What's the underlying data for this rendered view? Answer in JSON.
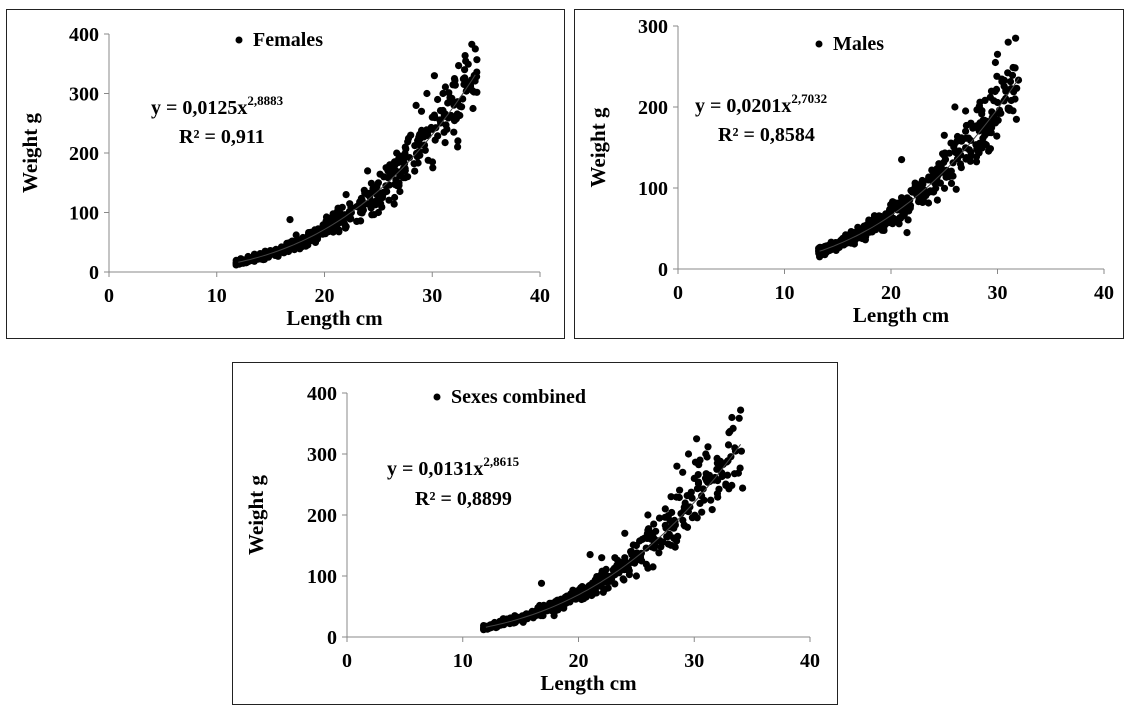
{
  "chart_data": [
    {
      "type": "scatter",
      "legend": "Females",
      "xlabel": "Length cm",
      "ylabel": "Weight g",
      "xlim": [
        0,
        40
      ],
      "ylim": [
        0,
        400
      ],
      "xticks": [
        "0",
        "10",
        "20",
        "30",
        "40"
      ],
      "yticks": [
        "0",
        "100",
        "200",
        "300",
        "400"
      ],
      "equation": {
        "base": "y = 0,0125x",
        "exponent": "2,8883"
      },
      "r2": "R² = 0,911",
      "fit": {
        "a": 0.0125,
        "b": 2.8883,
        "x_range": [
          12,
          34
        ]
      },
      "x_range": [
        11.8,
        34.2
      ],
      "points": [
        [
          11.8,
          12
        ],
        [
          12.5,
          18
        ],
        [
          13,
          22
        ],
        [
          13.5,
          30
        ],
        [
          14,
          26
        ],
        [
          14.5,
          35
        ],
        [
          15,
          30
        ],
        [
          15.5,
          38
        ],
        [
          16,
          42
        ],
        [
          16.5,
          48
        ],
        [
          17,
          52
        ],
        [
          16.8,
          88
        ],
        [
          17.5,
          55
        ],
        [
          18,
          58
        ],
        [
          18.5,
          62
        ],
        [
          19,
          67
        ],
        [
          19.5,
          72
        ],
        [
          20,
          75
        ],
        [
          20.5,
          80
        ],
        [
          21,
          85
        ],
        [
          21.5,
          90
        ],
        [
          22,
          95
        ],
        [
          22,
          130
        ],
        [
          22.5,
          100
        ],
        [
          23,
          110
        ],
        [
          23.5,
          120
        ],
        [
          24,
          130
        ],
        [
          24,
          170
        ],
        [
          24.5,
          140
        ],
        [
          25,
          150
        ],
        [
          25,
          100
        ],
        [
          25.5,
          160
        ],
        [
          26,
          175
        ],
        [
          26.5,
          185
        ],
        [
          27,
          195
        ],
        [
          27.5,
          210
        ],
        [
          28,
          230
        ],
        [
          28.5,
          280
        ],
        [
          29,
          270
        ],
        [
          29.5,
          300
        ],
        [
          30,
          260
        ],
        [
          30.2,
          330
        ],
        [
          30.5,
          290
        ],
        [
          31,
          300
        ],
        [
          32,
          235
        ],
        [
          32,
          285
        ],
        [
          33,
          340
        ],
        [
          33.5,
          310
        ],
        [
          34,
          375
        ]
      ]
    },
    {
      "type": "scatter",
      "legend": "Males",
      "xlabel": "Length cm",
      "ylabel": "Weight g",
      "xlim": [
        0,
        40
      ],
      "ylim": [
        0,
        300
      ],
      "xticks": [
        "0",
        "10",
        "20",
        "30",
        "40"
      ],
      "yticks": [
        "0",
        "100",
        "200",
        "300"
      ],
      "equation": {
        "base": "y = 0,0201x",
        "exponent": "2,7032"
      },
      "r2": "R² = 0,8584",
      "fit": {
        "a": 0.0201,
        "b": 2.7032,
        "x_range": [
          13.3,
          32
        ]
      },
      "x_range": [
        13.2,
        32
      ],
      "points": [
        [
          13.3,
          15
        ],
        [
          13.5,
          22
        ],
        [
          14,
          26
        ],
        [
          14.5,
          30
        ],
        [
          15,
          32
        ],
        [
          15.5,
          38
        ],
        [
          16,
          42
        ],
        [
          16.5,
          45
        ],
        [
          17,
          48
        ],
        [
          17.5,
          52
        ],
        [
          18,
          55
        ],
        [
          18.5,
          60
        ],
        [
          19,
          65
        ],
        [
          19.5,
          68
        ],
        [
          20,
          72
        ],
        [
          20.5,
          80
        ],
        [
          21,
          88
        ],
        [
          21,
          135
        ],
        [
          21.5,
          45
        ],
        [
          22,
          95
        ],
        [
          22.5,
          100
        ],
        [
          23,
          105
        ],
        [
          23.5,
          110
        ],
        [
          24,
          120
        ],
        [
          24.5,
          130
        ],
        [
          25,
          140
        ],
        [
          25,
          165
        ],
        [
          26,
          145
        ],
        [
          26,
          200
        ],
        [
          27,
          170
        ],
        [
          27,
          195
        ],
        [
          27.5,
          180
        ],
        [
          28,
          175
        ],
        [
          28.2,
          145
        ],
        [
          29.8,
          255
        ],
        [
          30,
          265
        ],
        [
          31,
          280
        ],
        [
          31.7,
          285
        ]
      ]
    },
    {
      "type": "scatter",
      "legend": "Sexes combined",
      "xlabel": "Length cm",
      "ylabel": "Weight g",
      "xlim": [
        0,
        40
      ],
      "ylim": [
        0,
        400
      ],
      "xticks": [
        "0",
        "10",
        "20",
        "30",
        "40"
      ],
      "yticks": [
        "0",
        "100",
        "200",
        "300",
        "400"
      ],
      "equation": {
        "base": "y = 0,0131x",
        "exponent": "2,8615"
      },
      "r2": "R² = 0,8899",
      "fit": {
        "a": 0.0131,
        "b": 2.8615,
        "x_range": [
          12,
          34
        ]
      },
      "x_range": [
        11.8,
        34.2
      ],
      "points": [
        [
          11.8,
          12
        ],
        [
          12.5,
          18
        ],
        [
          13,
          22
        ],
        [
          13.5,
          30
        ],
        [
          14,
          26
        ],
        [
          14.5,
          35
        ],
        [
          15,
          30
        ],
        [
          15.5,
          38
        ],
        [
          16,
          42
        ],
        [
          16.5,
          48
        ],
        [
          17,
          52
        ],
        [
          16.8,
          88
        ],
        [
          17.5,
          55
        ],
        [
          18,
          58
        ],
        [
          18.5,
          62
        ],
        [
          19,
          67
        ],
        [
          19.5,
          72
        ],
        [
          20,
          75
        ],
        [
          20.5,
          80
        ],
        [
          21,
          85
        ],
        [
          21,
          135
        ],
        [
          21.5,
          90
        ],
        [
          22,
          95
        ],
        [
          22,
          130
        ],
        [
          22.5,
          100
        ],
        [
          23,
          110
        ],
        [
          23.5,
          120
        ],
        [
          24,
          130
        ],
        [
          24,
          170
        ],
        [
          24.5,
          140
        ],
        [
          25,
          150
        ],
        [
          25,
          100
        ],
        [
          25.5,
          160
        ],
        [
          26,
          175
        ],
        [
          26,
          200
        ],
        [
          26.5,
          185
        ],
        [
          27,
          195
        ],
        [
          27.5,
          210
        ],
        [
          28,
          230
        ],
        [
          28.5,
          280
        ],
        [
          29,
          270
        ],
        [
          29.5,
          300
        ],
        [
          30,
          260
        ],
        [
          30.2,
          325
        ],
        [
          30.5,
          290
        ],
        [
          31,
          300
        ],
        [
          32,
          235
        ],
        [
          32,
          285
        ],
        [
          33,
          335
        ],
        [
          33.5,
          310
        ],
        [
          34,
          372
        ]
      ]
    }
  ]
}
